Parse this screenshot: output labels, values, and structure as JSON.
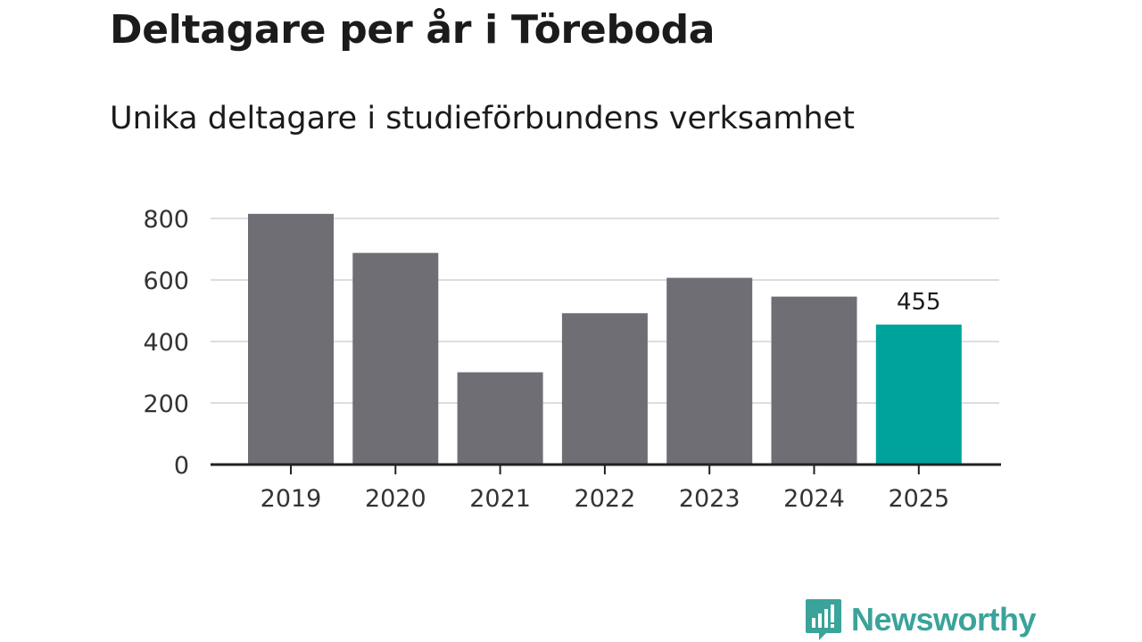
{
  "header": {
    "title": "Deltagare per år i Töreboda",
    "subtitle": "Unika deltagare i studieförbundens verksamhet"
  },
  "chart_data": {
    "type": "bar",
    "title": "Deltagare per år i Töreboda",
    "subtitle": "Unika deltagare i studieförbundens verksamhet",
    "categories": [
      "2019",
      "2020",
      "2021",
      "2022",
      "2023",
      "2024",
      "2025"
    ],
    "values": [
      815,
      688,
      300,
      492,
      607,
      546,
      455
    ],
    "xlabel": "",
    "ylabel": "",
    "ylim": [
      0,
      800
    ],
    "yticks": [
      0,
      200,
      400,
      600,
      800
    ],
    "grid": true,
    "highlight_index": 6,
    "labelled_index": 6,
    "colors": {
      "bar": "#6f6e74",
      "highlight": "#00a39b",
      "grid": "#dddddd",
      "axis": "#222222"
    }
  },
  "branding": {
    "logo_text": "Newsworthy",
    "logo_icon": "newsworthy-chart-bubble-icon",
    "color": "#3aa39a"
  }
}
